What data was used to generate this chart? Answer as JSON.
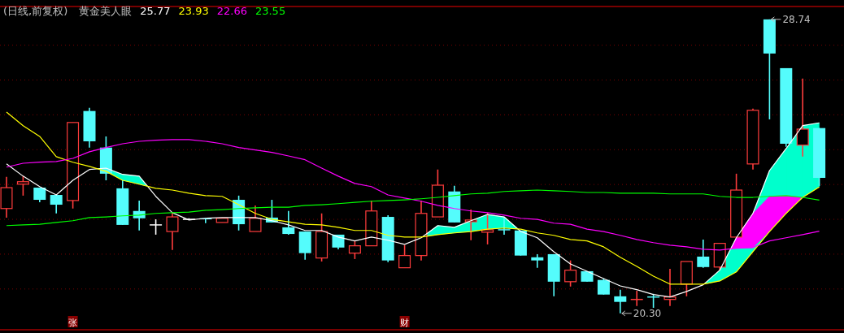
{
  "chart_data": {
    "type": "candlestick",
    "title": "(日线,前复权)",
    "legend_title": "黄金美人眼",
    "categories": [
      null,
      null,
      null,
      null,
      "张",
      null,
      null,
      null,
      null,
      null,
      null,
      null,
      null,
      null,
      null,
      null,
      null,
      null,
      null,
      null,
      null,
      null,
      null,
      null,
      "财",
      null,
      null,
      null,
      null,
      null,
      null,
      null,
      null,
      null,
      null,
      null,
      null,
      null,
      null,
      null,
      null,
      null,
      null,
      null,
      null,
      null,
      null,
      null,
      null,
      null
    ],
    "ohlc": [
      [
        23.31,
        24.22,
        23.05,
        23.91
      ],
      [
        24.01,
        24.24,
        23.68,
        24.08
      ],
      [
        23.91,
        23.91,
        23.49,
        23.56
      ],
      [
        23.7,
        23.7,
        23.17,
        23.42
      ],
      [
        23.54,
        25.78,
        23.31,
        25.78
      ],
      [
        26.11,
        26.2,
        25.06,
        25.24
      ],
      [
        25.06,
        25.38,
        24.12,
        24.31
      ],
      [
        23.89,
        24.12,
        22.84,
        22.84
      ],
      [
        23.24,
        23.54,
        22.68,
        23.03
      ],
      [
        22.84,
        23.0,
        22.56,
        22.84
      ],
      [
        22.65,
        23.19,
        22.12,
        23.07
      ],
      [
        23.0,
        23.03,
        22.98,
        23.0
      ],
      [
        23.03,
        23.03,
        22.89,
        23.0
      ],
      [
        22.91,
        23.03,
        22.91,
        23.03
      ],
      [
        23.56,
        23.68,
        22.68,
        22.86
      ],
      [
        22.65,
        23.4,
        22.65,
        23.03
      ],
      [
        23.05,
        23.56,
        22.91,
        22.91
      ],
      [
        22.77,
        23.24,
        22.56,
        22.58
      ],
      [
        22.65,
        22.65,
        21.84,
        22.03
      ],
      [
        21.89,
        23.17,
        21.79,
        22.65
      ],
      [
        22.56,
        22.56,
        22.14,
        22.19
      ],
      [
        22.03,
        22.38,
        21.86,
        22.24
      ],
      [
        22.24,
        23.54,
        22.24,
        23.24
      ],
      [
        23.07,
        23.12,
        21.77,
        21.82
      ],
      [
        21.61,
        22.26,
        21.61,
        21.96
      ],
      [
        21.96,
        23.54,
        21.82,
        23.17
      ],
      [
        23.07,
        24.43,
        23.07,
        23.98
      ],
      [
        23.8,
        23.96,
        22.91,
        22.91
      ],
      [
        22.93,
        23.28,
        22.4,
        22.98
      ],
      [
        22.63,
        23.19,
        22.28,
        22.7
      ],
      [
        22.7,
        23.07,
        22.56,
        22.7
      ],
      [
        22.68,
        22.68,
        21.96,
        21.96
      ],
      [
        21.91,
        22.0,
        21.61,
        21.82
      ],
      [
        22.0,
        22.0,
        20.79,
        21.21
      ],
      [
        21.21,
        21.82,
        21.07,
        21.54
      ],
      [
        21.51,
        21.51,
        21.21,
        21.21
      ],
      [
        21.26,
        21.3,
        20.84,
        20.84
      ],
      [
        20.79,
        20.98,
        20.3,
        20.63
      ],
      [
        20.7,
        20.95,
        20.51,
        20.7
      ],
      [
        20.77,
        20.86,
        20.46,
        20.77
      ],
      [
        20.7,
        21.58,
        20.51,
        20.77
      ],
      [
        21.14,
        21.79,
        20.79,
        21.79
      ],
      [
        21.93,
        22.42,
        21.61,
        21.63
      ],
      [
        21.63,
        22.31,
        21.54,
        22.31
      ],
      [
        22.49,
        24.31,
        22.49,
        23.84
      ],
      [
        24.59,
        26.18,
        24.43,
        26.13
      ],
      [
        28.74,
        28.74,
        25.87,
        27.76
      ],
      [
        27.34,
        27.34,
        25.08,
        25.17
      ],
      [
        25.13,
        27.04,
        24.8,
        25.59
      ],
      [
        25.62,
        25.62,
        23.96,
        24.19
      ]
    ],
    "colors": [
      "#ff3c3c",
      "#ff3c3c",
      "#54fcfc",
      "#54fcfc",
      "#ff3c3c",
      "#54fcfc",
      "#54fcfc",
      "#54fcfc",
      "#54fcfc",
      "#ffffff",
      "#ff3c3c",
      "#ffffff",
      "#54fcfc",
      "#ff3c3c",
      "#54fcfc",
      "#ff3c3c",
      "#54fcfc",
      "#54fcfc",
      "#54fcfc",
      "#ff3c3c",
      "#54fcfc",
      "#ff3c3c",
      "#ff3c3c",
      "#54fcfc",
      "#ff3c3c",
      "#ff3c3c",
      "#ff3c3c",
      "#54fcfc",
      "#ff3c3c",
      "#ff3c3c",
      "#54fcfc",
      "#54fcfc",
      "#54fcfc",
      "#54fcfc",
      "#ff3c3c",
      "#54fcfc",
      "#54fcfc",
      "#54fcfc",
      "#ff3c3c",
      "#54fcfc",
      "#ff3c3c",
      "#ff3c3c",
      "#54fcfc",
      "#ff3c3c",
      "#ff3c3c",
      "#ff3c3c",
      "#54fcfc",
      "#54fcfc",
      "#ff3c3c",
      "#54fcfc"
    ],
    "series": [
      {
        "type": "line",
        "name": "25.77",
        "color": "#ffffff",
        "values": [
          24.59,
          24.24,
          23.94,
          23.7,
          24.12,
          24.43,
          24.47,
          24.29,
          24.24,
          23.66,
          23.19,
          22.98,
          23.03,
          23.05,
          23.05,
          23.05,
          22.96,
          22.84,
          22.68,
          22.68,
          22.49,
          22.38,
          22.49,
          22.4,
          22.28,
          22.47,
          22.82,
          22.77,
          22.96,
          23.14,
          23.07,
          22.65,
          22.47,
          22.07,
          21.72,
          21.51,
          21.3,
          21.09,
          20.98,
          20.84,
          20.77,
          20.93,
          21.12,
          21.54,
          22.47,
          23.17,
          24.4,
          25.03,
          25.69,
          25.77
        ]
      },
      {
        "type": "line",
        "name": "23.93",
        "color": "#ffff00",
        "values": [
          26.08,
          25.69,
          25.38,
          24.8,
          24.64,
          24.52,
          24.38,
          24.12,
          24.01,
          23.89,
          23.84,
          23.75,
          23.68,
          23.66,
          23.42,
          23.17,
          23.0,
          22.93,
          22.86,
          22.84,
          22.77,
          22.68,
          22.68,
          22.54,
          22.49,
          22.49,
          22.56,
          22.61,
          22.65,
          22.72,
          22.75,
          22.72,
          22.61,
          22.54,
          22.42,
          22.38,
          22.21,
          21.91,
          21.65,
          21.37,
          21.14,
          21.14,
          21.14,
          21.23,
          21.49,
          22.07,
          22.65,
          23.17,
          23.63,
          23.93
        ]
      },
      {
        "type": "line",
        "name": "22.66",
        "color": "#ff00ff",
        "values": [
          24.5,
          24.61,
          24.64,
          24.66,
          24.75,
          24.94,
          25.06,
          25.17,
          25.24,
          25.27,
          25.29,
          25.29,
          25.24,
          25.17,
          25.06,
          24.99,
          24.92,
          24.82,
          24.71,
          24.47,
          24.24,
          24.03,
          23.94,
          23.7,
          23.61,
          23.52,
          23.4,
          23.31,
          23.24,
          23.19,
          23.12,
          23.03,
          23.0,
          22.89,
          22.86,
          22.72,
          22.65,
          22.54,
          22.42,
          22.33,
          22.26,
          22.21,
          22.14,
          22.12,
          22.17,
          22.19,
          22.38,
          22.47,
          22.56,
          22.66
        ]
      },
      {
        "type": "line",
        "name": "23.55",
        "color": "#00ff00",
        "values": [
          22.82,
          22.84,
          22.86,
          22.91,
          22.96,
          23.05,
          23.07,
          23.1,
          23.12,
          23.17,
          23.19,
          23.21,
          23.26,
          23.28,
          23.31,
          23.33,
          23.35,
          23.35,
          23.4,
          23.42,
          23.45,
          23.49,
          23.52,
          23.54,
          23.56,
          23.59,
          23.63,
          23.68,
          23.73,
          23.75,
          23.8,
          23.82,
          23.84,
          23.82,
          23.8,
          23.77,
          23.77,
          23.75,
          23.75,
          23.75,
          23.73,
          23.73,
          23.73,
          23.66,
          23.63,
          23.63,
          23.66,
          23.68,
          23.63,
          23.55
        ]
      }
    ],
    "annotations": [
      "28.74",
      "20.30"
    ],
    "ylim": [
      19.83,
      29.11
    ],
    "yticks": [
      {
        "value": 21,
        "label": null
      },
      {
        "value": 22,
        "label": null
      },
      {
        "value": 23,
        "label": null
      },
      {
        "value": 24,
        "label": null
      },
      {
        "value": 25,
        "label": null
      },
      {
        "value": 26,
        "label": null
      },
      {
        "value": 27,
        "label": null
      },
      {
        "value": 28,
        "label": null
      }
    ],
    "grid": "y",
    "legend": "top left",
    "tick_labels": "x"
  }
}
